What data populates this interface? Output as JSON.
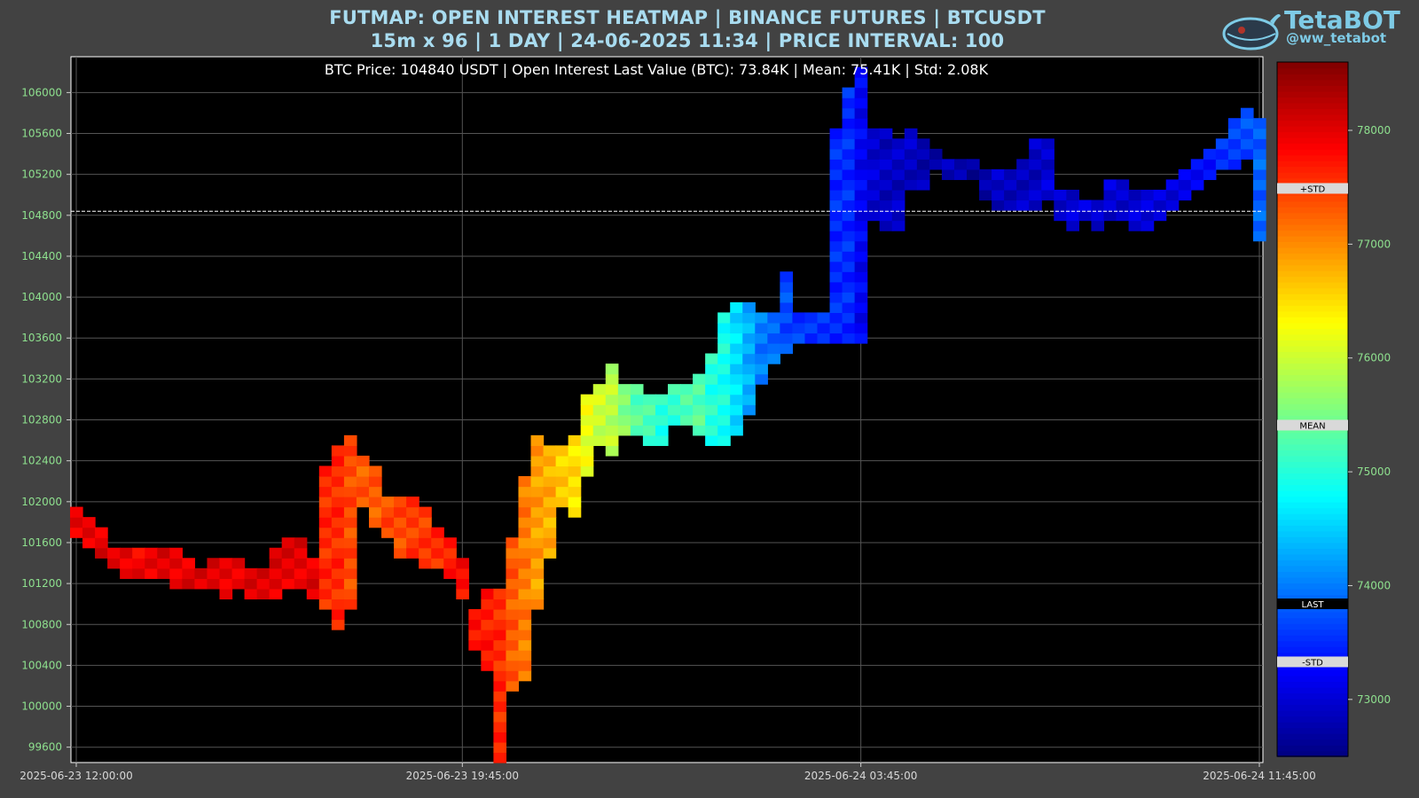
{
  "header": {
    "title_line1": "FUTMAP: OPEN INTEREST HEATMAP | BINANCE FUTURES | BTCUSDT",
    "title_line2": "15m x 96 | 1 DAY | 24-06-2025 11:34 | PRICE INTERVAL: 100"
  },
  "logo": {
    "name": "TetaBOT",
    "handle": "@ww_tetabot",
    "icon": "whale-robot-icon"
  },
  "chart_data": {
    "type": "heatmap",
    "title": "",
    "annotation": "BTC Price: 104840 USDT | Open Interest Last Value (BTC): 73.84K | Mean: 75.41K | Std: 2.08K",
    "current_price": 104840,
    "price_interval": 100,
    "bars": 96,
    "ylim": [
      99450,
      106350
    ],
    "y_ticks": [
      99600,
      100000,
      100400,
      100800,
      101200,
      101600,
      102000,
      102400,
      102800,
      103200,
      103600,
      104000,
      104400,
      104800,
      105200,
      105600,
      106000
    ],
    "x_ticks": [
      {
        "index": 0,
        "label": "2025-06-23 12:00:00"
      },
      {
        "index": 31,
        "label": "2025-06-23 19:45:00"
      },
      {
        "index": 63,
        "label": "2025-06-24 03:45:00"
      },
      {
        "index": 95,
        "label": "2025-06-24 11:45:00"
      }
    ],
    "grid": true,
    "colormap": "jet",
    "colorbar": {
      "range": [
        72500,
        78600
      ],
      "ticks": [
        73000,
        74000,
        75000,
        76000,
        77000,
        78000
      ],
      "markers": [
        {
          "label": "+STD",
          "value": 77490
        },
        {
          "label": "MEAN",
          "value": 75410
        },
        {
          "label": "LAST",
          "value": 73840
        },
        {
          "label": "-STD",
          "value": 73330
        }
      ]
    },
    "series": [
      {
        "lows": [
          101700,
          101600,
          101500,
          101400,
          101300,
          101300,
          101300,
          101300,
          101200,
          101200,
          101200,
          101200,
          101100,
          101200,
          101100,
          101100,
          101100,
          101200,
          101200,
          101100,
          101000,
          100800,
          101000,
          102000,
          101800,
          101700,
          101500,
          101500,
          101400,
          101400,
          101300,
          101100,
          100600,
          100400,
          99500,
          100200,
          100300,
          101000,
          101500,
          102000,
          101900,
          102300,
          102600,
          102500,
          102700,
          102700,
          102600,
          102600,
          102800,
          102800,
          102700,
          102600,
          102600,
          102700,
          102900,
          103200,
          103400,
          103500,
          103600,
          103600,
          103600,
          103600,
          103600,
          103600,
          104800,
          104700,
          104700,
          105100,
          105100,
          105300,
          105200,
          105200,
          105200,
          105000,
          104900,
          104900,
          104900,
          104900,
          105000,
          104800,
          104700,
          104800,
          104700,
          104800,
          104800,
          104700,
          104700,
          104800,
          104900,
          105000,
          105100,
          105200,
          105300,
          105300,
          105400,
          104600
        ],
        "highs": [
          101900,
          101800,
          101700,
          101500,
          101500,
          101500,
          101500,
          101500,
          101500,
          101400,
          101300,
          101400,
          101400,
          101400,
          101300,
          101300,
          101500,
          101600,
          101600,
          101400,
          102300,
          102500,
          102600,
          102400,
          102300,
          102000,
          102000,
          102000,
          101900,
          101700,
          101600,
          101400,
          100900,
          101100,
          101100,
          101600,
          102200,
          102600,
          102500,
          102500,
          102600,
          103000,
          103100,
          103300,
          103100,
          103100,
          103000,
          103000,
          103100,
          103100,
          103200,
          103400,
          103800,
          103900,
          103900,
          103800,
          103800,
          104200,
          103800,
          103800,
          103800,
          105600,
          106000,
          106200,
          105600,
          105600,
          105500,
          105600,
          105500,
          105400,
          105300,
          105300,
          105300,
          105200,
          105200,
          105200,
          105300,
          105500,
          105500,
          105000,
          105000,
          104900,
          104900,
          105100,
          105100,
          105000,
          105000,
          105000,
          105100,
          105200,
          105300,
          105400,
          105500,
          105700,
          105800,
          105700
        ]
      }
    ],
    "oi_values": [
      77900,
      78000,
      78000,
      78000,
      78000,
      77900,
      77900,
      78000,
      78000,
      78000,
      78000,
      78000,
      78000,
      78000,
      78000,
      78000,
      78000,
      78000,
      78000,
      78000,
      77600,
      77600,
      77400,
      77300,
      77300,
      77400,
      77400,
      77500,
      77500,
      77600,
      77700,
      77800,
      77800,
      77700,
      77600,
      77300,
      77100,
      76900,
      76800,
      76600,
      76500,
      76200,
      76000,
      75900,
      75600,
      75300,
      75200,
      75000,
      75100,
      75300,
      75300,
      75000,
      74900,
      74600,
      74300,
      74000,
      73900,
      73700,
      73600,
      73500,
      73500,
      73500,
      73500,
      73200,
      73000,
      72900,
      72900,
      72900,
      72800,
      72800,
      72800,
      72800,
      72700,
      72700,
      72900,
      72900,
      72900,
      72900,
      73000,
      73000,
      73000,
      73000,
      73000,
      73000,
      73000,
      73000,
      73000,
      73000,
      73000,
      73100,
      73200,
      73300,
      73500,
      73600,
      73700,
      73840
    ]
  }
}
